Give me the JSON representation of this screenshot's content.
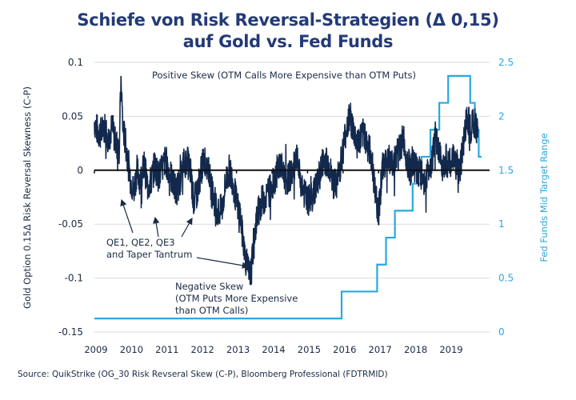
{
  "title_lines": [
    "Schiefe von Risk Reversal-Strategien (Δ 0,15)",
    "auf Gold vs. Fed Funds"
  ],
  "source": "Source: QuikStrike (OG_30 Risk Revseral Skew (C-P), Bloomberg Professional (FDTRMID)",
  "colors": {
    "title": "#233a78",
    "skew_line": "#12294d",
    "fed_line": "#29a8e0",
    "zero_line": "#111111",
    "grid": "#d9d9d9",
    "text": "#1a2a44"
  },
  "chart_data": {
    "type": "line",
    "title": "Schiefe von Risk Reversal-Strategien (Δ 0,15) auf Gold vs. Fed Funds",
    "xlabel": "",
    "ylabel": "Gold Option 0.15Δ Risk Reversal Skewness  (C-P)",
    "y2label": "Fed Funds Mid Target Range",
    "xlim": [
      2009,
      2020
    ],
    "ylim": [
      -0.15,
      0.1
    ],
    "y2lim": [
      0,
      2.5
    ],
    "x_ticks": [
      "2009",
      "2010",
      "2011",
      "2012",
      "2013",
      "2014",
      "2015",
      "2016",
      "2017",
      "2018",
      "2019"
    ],
    "y_ticks": [
      "0.1",
      "0.05",
      "0",
      "-0.05",
      "-0.1",
      "-0.15"
    ],
    "y2_ticks": [
      "2.5",
      "2",
      "1.5",
      "1",
      "0.5",
      "0"
    ],
    "grid": "horizontal",
    "series": [
      {
        "name": "Gold Option 0.15Δ Risk Reversal Skewness (C-P)",
        "axis": "left",
        "x": [
          2009.0,
          2009.1,
          2009.2,
          2009.3,
          2009.4,
          2009.5,
          2009.6,
          2009.7,
          2009.75,
          2009.8,
          2009.9,
          2010.0,
          2010.1,
          2010.2,
          2010.3,
          2010.4,
          2010.5,
          2010.6,
          2010.7,
          2010.8,
          2010.9,
          2011.0,
          2011.1,
          2011.2,
          2011.3,
          2011.4,
          2011.5,
          2011.6,
          2011.7,
          2011.8,
          2011.9,
          2012.0,
          2012.1,
          2012.2,
          2012.3,
          2012.4,
          2012.5,
          2012.6,
          2012.7,
          2012.8,
          2012.9,
          2013.0,
          2013.1,
          2013.2,
          2013.3,
          2013.4,
          2013.5,
          2013.6,
          2013.7,
          2013.8,
          2013.9,
          2014.0,
          2014.1,
          2014.2,
          2014.3,
          2014.4,
          2014.5,
          2014.6,
          2014.7,
          2014.8,
          2014.9,
          2015.0,
          2015.1,
          2015.2,
          2015.3,
          2015.4,
          2015.5,
          2015.6,
          2015.7,
          2015.8,
          2015.9,
          2016.0,
          2016.1,
          2016.2,
          2016.3,
          2016.4,
          2016.5,
          2016.6,
          2016.7,
          2016.8,
          2016.9,
          2017.0,
          2017.1,
          2017.2,
          2017.3,
          2017.4,
          2017.5,
          2017.6,
          2017.7,
          2017.8,
          2017.9,
          2018.0,
          2018.1,
          2018.2,
          2018.3,
          2018.4,
          2018.5,
          2018.6,
          2018.7,
          2018.8,
          2018.9,
          2019.0,
          2019.1,
          2019.2,
          2019.3,
          2019.4,
          2019.5,
          2019.6,
          2019.7,
          2019.8
        ],
        "y": [
          0.045,
          0.035,
          0.035,
          0.04,
          0.03,
          0.04,
          0.025,
          0.02,
          0.085,
          0.04,
          0.02,
          -0.005,
          -0.02,
          0.0,
          -0.01,
          0.005,
          -0.015,
          -0.01,
          0.005,
          -0.005,
          0.0,
          0.01,
          0.0,
          -0.01,
          -0.02,
          -0.01,
          0.005,
          0.01,
          0.0,
          -0.03,
          -0.02,
          0.0,
          0.01,
          0.005,
          -0.02,
          -0.03,
          -0.04,
          -0.035,
          -0.01,
          0.0,
          -0.01,
          -0.03,
          -0.04,
          -0.07,
          -0.09,
          -0.1,
          -0.06,
          -0.04,
          -0.03,
          -0.025,
          -0.02,
          -0.015,
          -0.005,
          0.005,
          0.0,
          -0.01,
          -0.005,
          0.0,
          0.01,
          -0.01,
          -0.02,
          -0.03,
          -0.025,
          -0.02,
          -0.01,
          0.005,
          0.01,
          0.005,
          -0.01,
          -0.015,
          0.0,
          0.02,
          0.04,
          0.05,
          0.035,
          0.025,
          0.03,
          0.035,
          0.02,
          0.015,
          -0.02,
          -0.04,
          0.0,
          0.01,
          0.01,
          0.005,
          0.015,
          0.02,
          0.03,
          0.01,
          0.0,
          0.005,
          0.0,
          -0.005,
          -0.01,
          0.0,
          0.01,
          0.03,
          0.015,
          0.005,
          0.01,
          0.005,
          0.01,
          0.005,
          0.0,
          0.03,
          0.05,
          0.04,
          0.045,
          0.035
        ]
      },
      {
        "name": "Fed Funds Mid Target Range",
        "axis": "right",
        "type": "step",
        "x": [
          2009.0,
          2015.96,
          2016.96,
          2017.21,
          2017.46,
          2017.96,
          2018.21,
          2018.46,
          2018.71,
          2018.96,
          2019.58,
          2019.71,
          2019.82,
          2019.9
        ],
        "y": [
          0.125,
          0.375,
          0.625,
          0.875,
          1.125,
          1.375,
          1.625,
          1.875,
          2.125,
          2.375,
          2.125,
          1.875,
          1.625,
          1.625
        ]
      }
    ],
    "reference_lines": [
      {
        "axis": "left",
        "y": 0
      }
    ],
    "annotations": [
      {
        "text": "Positive Skew (OTM Calls More Expensive than OTM Puts)"
      },
      {
        "text": [
          "QE1, QE2, QE3",
          "and Taper Tantrum"
        ],
        "arrows_to": [
          2009.8,
          2010.65,
          2011.6,
          2013.2
        ]
      },
      {
        "text": [
          "Negative Skew",
          "(OTM Puts More Expensive",
          "than OTM Calls)"
        ]
      }
    ],
    "legend": "none"
  }
}
